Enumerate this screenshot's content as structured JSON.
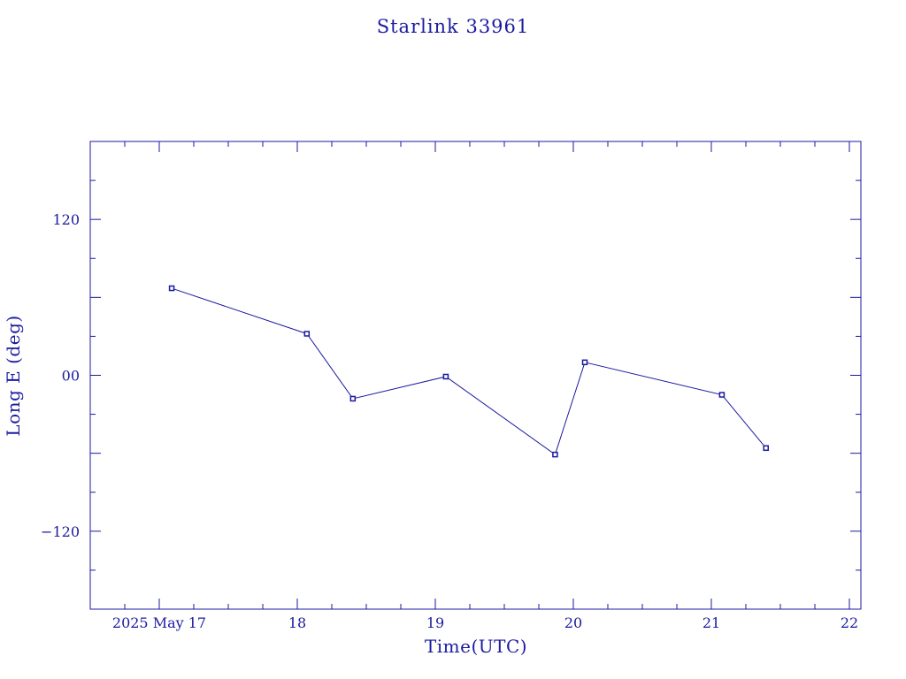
{
  "chart_data": {
    "type": "line",
    "title": "Starlink 33961",
    "xlabel": "Time(UTC)",
    "ylabel": "Long E (deg)",
    "x_axis_type": "date",
    "xlim": [
      "2025-05-16T12:00",
      "2025-05-22T02:00"
    ],
    "ylim": [
      -180,
      180
    ],
    "x_ticks": [
      {
        "date": "2025-05-17",
        "label": "2025 May 17"
      },
      {
        "date": "2025-05-18",
        "label": "18"
      },
      {
        "date": "2025-05-19",
        "label": "19"
      },
      {
        "date": "2025-05-20",
        "label": "20"
      },
      {
        "date": "2025-05-21",
        "label": "21"
      },
      {
        "date": "2025-05-22",
        "label": "22"
      }
    ],
    "y_ticks": [
      {
        "value": 120,
        "label": "120"
      },
      {
        "value": 0,
        "label": "00"
      },
      {
        "value": -120,
        "label": "−120"
      }
    ],
    "series": [
      {
        "points": [
          {
            "x": "2025-05-17T02:10",
            "y": 67
          },
          {
            "x": "2025-05-18T01:40",
            "y": 32
          },
          {
            "x": "2025-05-18T09:40",
            "y": -18
          },
          {
            "x": "2025-05-19T01:50",
            "y": -1
          },
          {
            "x": "2025-05-19T20:50",
            "y": -61
          },
          {
            "x": "2025-05-20T02:00",
            "y": 10
          },
          {
            "x": "2025-05-21T01:50",
            "y": -15
          },
          {
            "x": "2025-05-21T09:30",
            "y": -56
          }
        ]
      }
    ],
    "grid": false,
    "colors": {
      "ink": "#1a1aa0",
      "background": "#ffffff"
    }
  }
}
